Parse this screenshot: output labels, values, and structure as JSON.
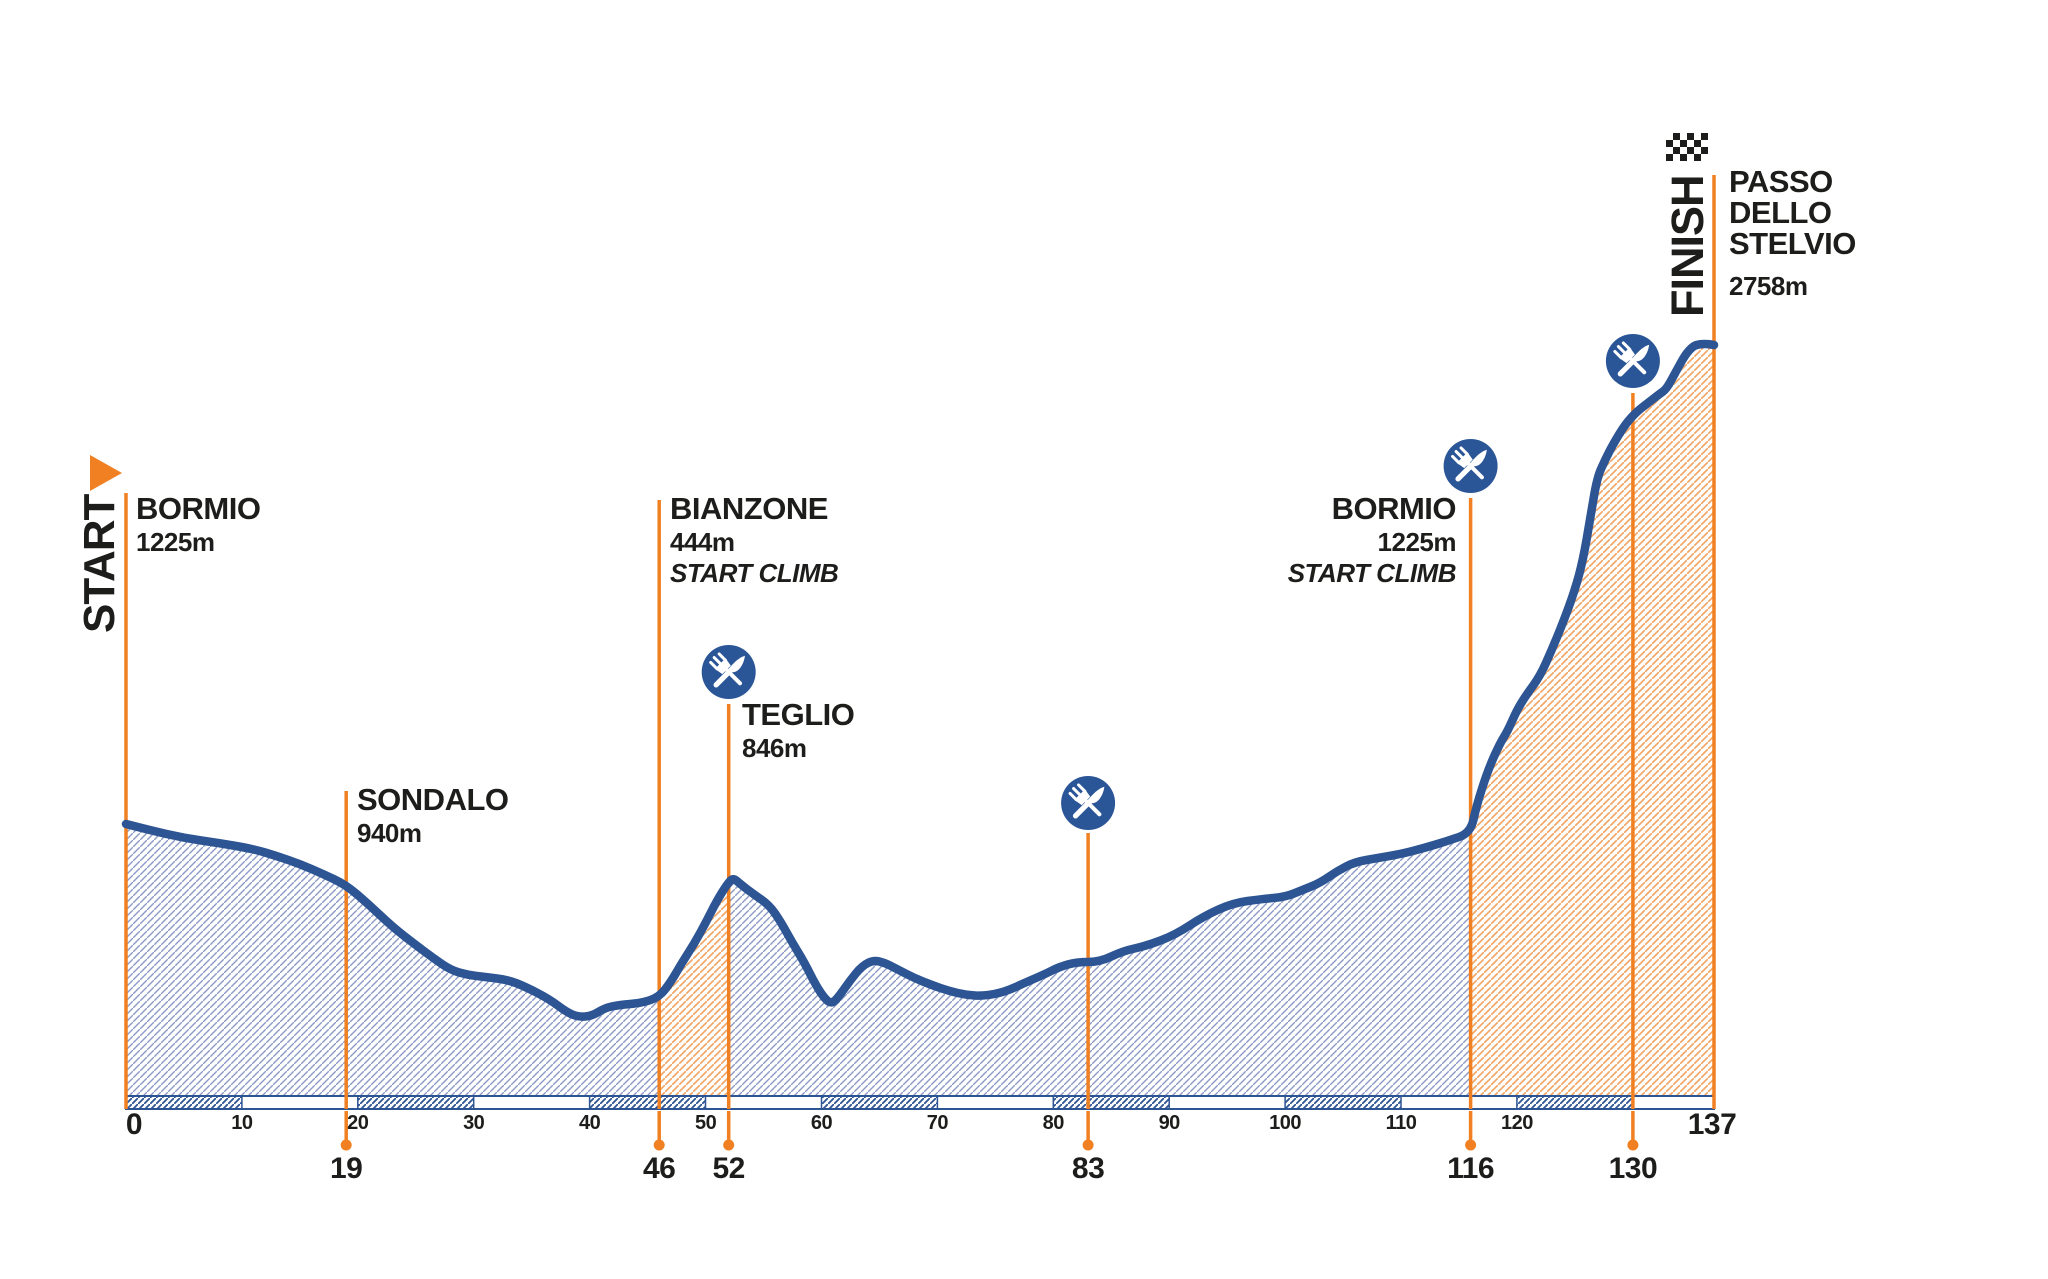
{
  "colors": {
    "orange": "#f08021",
    "profile_blue": "#2d5493",
    "hatch_blue": "#8d9cc6",
    "hatch_orange": "#f2a868",
    "icon_blue": "#2a5597",
    "text": "#1d1d1b",
    "white": "#ffffff"
  },
  "start_flag_label": "START",
  "finish_flag_label": "FINISH",
  "icons": {
    "food_icon": "fork-and-knife-crossed",
    "start_icon": "orange-right-triangle",
    "finish_icon": "checkered-flag"
  },
  "chart_data": {
    "type": "area",
    "x_unit": "km",
    "x_range": [
      0,
      137
    ],
    "x_ticks": [
      "10",
      "20",
      "30",
      "40",
      "50",
      "60",
      "70",
      "80",
      "90",
      "100",
      "110",
      "120"
    ],
    "x_endpoint_labels": [
      "0",
      "137"
    ],
    "grid": false,
    "legend": false,
    "climb_segments_km": [
      [
        46,
        52
      ],
      [
        116,
        137
      ]
    ],
    "bar_hatched_decades_km": [
      0,
      20,
      40,
      60,
      80,
      100,
      120
    ],
    "waypoints": [
      {
        "id": "bormio-start",
        "km": 0,
        "km_label": "0",
        "name": "BORMIO",
        "elevation": "1225m",
        "note": "",
        "food": false,
        "label_side": "right"
      },
      {
        "id": "sondalo",
        "km": 19,
        "km_label": "19",
        "name": "SONDALO",
        "elevation": "940m",
        "note": "",
        "food": false,
        "label_side": "right"
      },
      {
        "id": "bianzone",
        "km": 46,
        "km_label": "46",
        "name": "BIANZONE",
        "elevation": "444m",
        "note": "START CLIMB",
        "food": false,
        "label_side": "right"
      },
      {
        "id": "teglio",
        "km": 52,
        "km_label": "52",
        "name": "TEGLIO",
        "elevation": "846m",
        "note": "",
        "food": true,
        "label_side": "right"
      },
      {
        "id": "feed-83",
        "km": 83,
        "km_label": "83",
        "name": "",
        "elevation": "",
        "note": "",
        "food": true,
        "label_side": "none"
      },
      {
        "id": "bormio-climb",
        "km": 116,
        "km_label": "116",
        "name": "BORMIO",
        "elevation": "1225m",
        "note": "START CLIMB",
        "food": true,
        "label_side": "left"
      },
      {
        "id": "feed-130",
        "km": 130,
        "km_label": "130",
        "name": "",
        "elevation": "",
        "note": "",
        "food": true,
        "label_side": "none"
      },
      {
        "id": "passo-stelvio",
        "km": 137,
        "km_label": "137",
        "name": "PASSO DELLO STELVIO",
        "elevation": "2758m",
        "note": "",
        "food": false,
        "label_side": "right"
      }
    ],
    "profile": [
      [
        0,
        1225,
        824
      ],
      [
        2,
        1198,
        830
      ],
      [
        5,
        1162,
        838
      ],
      [
        8,
        1139,
        843
      ],
      [
        11,
        1112,
        849
      ],
      [
        13,
        1081,
        856
      ],
      [
        15,
        1044,
        864
      ],
      [
        17,
        999,
        874
      ],
      [
        19,
        940,
        885
      ],
      [
        21,
        860,
        905
      ],
      [
        23,
        760,
        927
      ],
      [
        25,
        680,
        945
      ],
      [
        26.5,
        620,
        958
      ],
      [
        28,
        565,
        970
      ],
      [
        29.5,
        545,
        975
      ],
      [
        31,
        535,
        977
      ],
      [
        33,
        520,
        980
      ],
      [
        34.5,
        490,
        987
      ],
      [
        36.5,
        435,
        999
      ],
      [
        38,
        375,
        1012
      ],
      [
        39,
        355,
        1017
      ],
      [
        40.2,
        360,
        1016
      ],
      [
        41.3,
        395,
        1008
      ],
      [
        42.5,
        410,
        1005
      ],
      [
        44.5,
        420,
        1003
      ],
      [
        46,
        444,
        997
      ],
      [
        47,
        495,
        982
      ],
      [
        48,
        560,
        962
      ],
      [
        49,
        625,
        944
      ],
      [
        50,
        695,
        923
      ],
      [
        51,
        770,
        900
      ],
      [
        52,
        832,
        882
      ],
      [
        52.4,
        846,
        878
      ],
      [
        53,
        825,
        884
      ],
      [
        54,
        795,
        893
      ],
      [
        55.5,
        755,
        905
      ],
      [
        56.5,
        695,
        922
      ],
      [
        57.5,
        620,
        943
      ],
      [
        58.5,
        555,
        962
      ],
      [
        59.5,
        480,
        985
      ],
      [
        60.3,
        430,
        999
      ],
      [
        60.9,
        412,
        1004
      ],
      [
        61.6,
        455,
        995
      ],
      [
        62.5,
        530,
        980
      ],
      [
        63.5,
        600,
        966
      ],
      [
        64.5,
        630,
        960
      ],
      [
        65.5,
        615,
        963
      ],
      [
        66.5,
        585,
        969
      ],
      [
        68,
        540,
        978
      ],
      [
        69.5,
        505,
        985
      ],
      [
        71,
        475,
        991
      ],
      [
        72.5,
        455,
        995
      ],
      [
        74,
        450,
        996
      ],
      [
        75.8,
        470,
        992
      ],
      [
        77.5,
        515,
        983
      ],
      [
        79.3,
        560,
        974
      ],
      [
        80.5,
        595,
        967
      ],
      [
        82,
        620,
        962
      ],
      [
        84,
        620,
        962
      ],
      [
        86,
        675,
        951
      ],
      [
        88,
        700,
        946
      ],
      [
        90.5,
        750,
        935
      ],
      [
        93,
        845,
        916
      ],
      [
        95.5,
        910,
        903
      ],
      [
        98,
        930,
        899
      ],
      [
        100,
        940,
        897
      ],
      [
        101.5,
        975,
        890
      ],
      [
        103,
        1010,
        883
      ],
      [
        104.5,
        1065,
        871
      ],
      [
        106,
        1110,
        862
      ],
      [
        108,
        1130,
        858
      ],
      [
        110,
        1145,
        854
      ],
      [
        112,
        1170,
        848
      ],
      [
        114,
        1195,
        841
      ],
      [
        116,
        1225,
        833
      ],
      [
        116.5,
        1320,
        806
      ],
      [
        117.5,
        1440,
        770
      ],
      [
        118.5,
        1520,
        744
      ],
      [
        119.2,
        1560,
        731
      ],
      [
        120,
        1625,
        710
      ],
      [
        120.8,
        1670,
        695
      ],
      [
        122,
        1730,
        676
      ],
      [
        123,
        1810,
        650
      ],
      [
        124,
        1900,
        622
      ],
      [
        125,
        2000,
        590
      ],
      [
        125.7,
        2090,
        560
      ],
      [
        126.3,
        2215,
        520
      ],
      [
        126.9,
        2345,
        478
      ],
      [
        127.6,
        2400,
        460
      ],
      [
        128.3,
        2450,
        444
      ],
      [
        129.3,
        2510,
        425
      ],
      [
        130.3,
        2550,
        412
      ],
      [
        131.3,
        2580,
        403
      ],
      [
        132.3,
        2605,
        394
      ],
      [
        132.9,
        2620,
        389
      ],
      [
        133.7,
        2675,
        372
      ],
      [
        134.5,
        2725,
        355
      ],
      [
        135.2,
        2755,
        346
      ],
      [
        135.8,
        2760,
        344
      ],
      [
        136.5,
        2760,
        344
      ],
      [
        137,
        2758,
        345
      ]
    ]
  }
}
